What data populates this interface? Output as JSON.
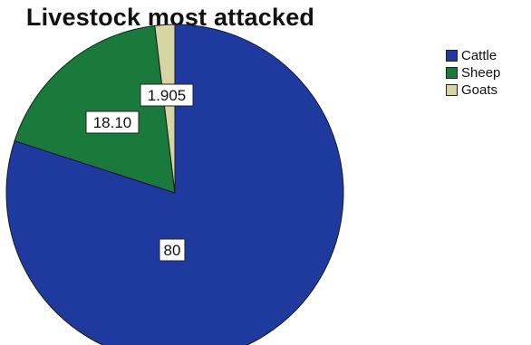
{
  "chart_data": {
    "type": "pie",
    "title": "Livestock most attacked",
    "slices": [
      {
        "name": "Cattle",
        "value": 80,
        "label": "80",
        "color": "#1f3a9e"
      },
      {
        "name": "Sheep",
        "value": 18.1,
        "label": "18.10",
        "color": "#1a7a3c"
      },
      {
        "name": "Goats",
        "value": 1.905,
        "label": "1.905",
        "color": "#d8d5a4"
      }
    ],
    "start_angle_deg": 0,
    "direction": "clockwise",
    "legend_position": "top-right"
  }
}
